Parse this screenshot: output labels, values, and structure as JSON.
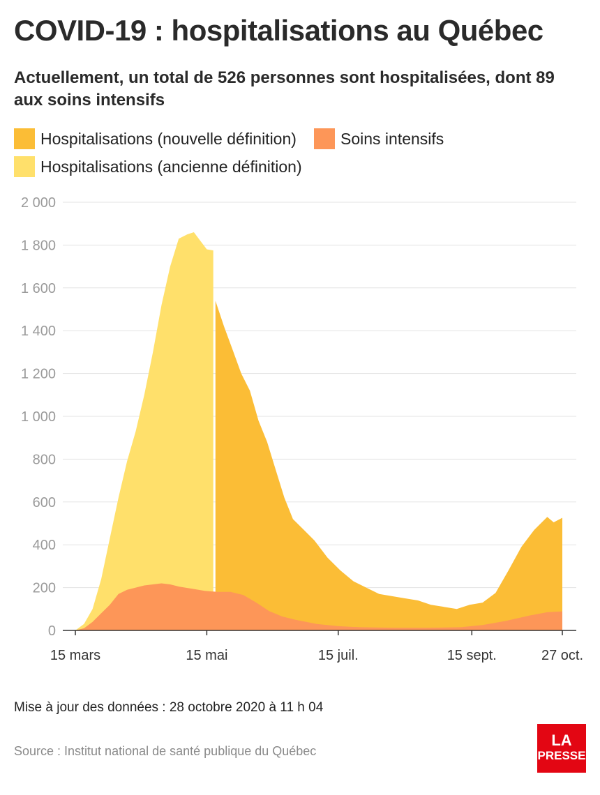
{
  "header": {
    "title": "COVID-19 : hospitalisations au Québec",
    "subtitle": "Actuellement, un total de 526 personnes sont hospitalisées, dont 89 aux soins intensifs"
  },
  "legend": {
    "items": [
      {
        "label": "Hospitalisations (nouvelle définition)",
        "color": "#fbbd36"
      },
      {
        "label": "Soins intensifs",
        "color": "#fd9658"
      },
      {
        "label": "Hospitalisations (ancienne définition)",
        "color": "#ffe06b"
      }
    ]
  },
  "chart_data": {
    "type": "area",
    "ylim": [
      0,
      2000
    ],
    "y_ticks": [
      "2 000",
      "1 800",
      "1 600",
      "1 400",
      "1 200",
      "1 000",
      "800",
      "600",
      "400",
      "200",
      "0"
    ],
    "x_ticks": [
      "15 mars",
      "15 mai",
      "15 juil.",
      "15 sept.",
      "27 oct."
    ],
    "grid": true,
    "legend_position": "top-left",
    "series": [
      {
        "name": "Hospitalisations (ancienne définition)",
        "color": "#ffe06b",
        "points": [
          [
            "2020-03-15",
            0
          ],
          [
            "2020-03-19",
            30
          ],
          [
            "2020-03-23",
            100
          ],
          [
            "2020-03-27",
            240
          ],
          [
            "2020-03-31",
            430
          ],
          [
            "2020-04-04",
            620
          ],
          [
            "2020-04-08",
            790
          ],
          [
            "2020-04-12",
            930
          ],
          [
            "2020-04-16",
            1100
          ],
          [
            "2020-04-20",
            1300
          ],
          [
            "2020-04-24",
            1520
          ],
          [
            "2020-04-28",
            1700
          ],
          [
            "2020-05-02",
            1830
          ],
          [
            "2020-05-06",
            1850
          ],
          [
            "2020-05-09",
            1860
          ],
          [
            "2020-05-12",
            1820
          ],
          [
            "2020-05-15",
            1780
          ],
          [
            "2020-05-18",
            1775
          ]
        ]
      },
      {
        "name": "Hospitalisations (nouvelle définition)",
        "color": "#fbbd36",
        "points": [
          [
            "2020-05-19",
            1540
          ],
          [
            "2020-05-23",
            1420
          ],
          [
            "2020-05-27",
            1310
          ],
          [
            "2020-05-31",
            1200
          ],
          [
            "2020-06-04",
            1120
          ],
          [
            "2020-06-08",
            980
          ],
          [
            "2020-06-12",
            880
          ],
          [
            "2020-06-16",
            750
          ],
          [
            "2020-06-20",
            620
          ],
          [
            "2020-06-24",
            520
          ],
          [
            "2020-06-28",
            480
          ],
          [
            "2020-07-04",
            420
          ],
          [
            "2020-07-10",
            340
          ],
          [
            "2020-07-16",
            280
          ],
          [
            "2020-07-22",
            230
          ],
          [
            "2020-07-28",
            200
          ],
          [
            "2020-08-03",
            170
          ],
          [
            "2020-08-09",
            160
          ],
          [
            "2020-08-15",
            150
          ],
          [
            "2020-08-21",
            140
          ],
          [
            "2020-08-27",
            120
          ],
          [
            "2020-09-02",
            110
          ],
          [
            "2020-09-08",
            100
          ],
          [
            "2020-09-14",
            120
          ],
          [
            "2020-09-20",
            130
          ],
          [
            "2020-09-26",
            175
          ],
          [
            "2020-10-02",
            280
          ],
          [
            "2020-10-08",
            390
          ],
          [
            "2020-10-14",
            470
          ],
          [
            "2020-10-20",
            530
          ],
          [
            "2020-10-23",
            505
          ],
          [
            "2020-10-27",
            526
          ]
        ]
      },
      {
        "name": "Soins intensifs",
        "color": "#fd9658",
        "points": [
          [
            "2020-03-15",
            0
          ],
          [
            "2020-03-19",
            10
          ],
          [
            "2020-03-23",
            40
          ],
          [
            "2020-03-27",
            80
          ],
          [
            "2020-03-31",
            120
          ],
          [
            "2020-04-04",
            170
          ],
          [
            "2020-04-08",
            190
          ],
          [
            "2020-04-12",
            200
          ],
          [
            "2020-04-16",
            210
          ],
          [
            "2020-04-20",
            215
          ],
          [
            "2020-04-24",
            220
          ],
          [
            "2020-04-28",
            215
          ],
          [
            "2020-05-02",
            205
          ],
          [
            "2020-05-08",
            195
          ],
          [
            "2020-05-14",
            185
          ],
          [
            "2020-05-20",
            180
          ],
          [
            "2020-05-26",
            180
          ],
          [
            "2020-06-01",
            165
          ],
          [
            "2020-06-07",
            130
          ],
          [
            "2020-06-13",
            90
          ],
          [
            "2020-06-19",
            65
          ],
          [
            "2020-06-25",
            50
          ],
          [
            "2020-07-05",
            30
          ],
          [
            "2020-07-15",
            20
          ],
          [
            "2020-07-25",
            15
          ],
          [
            "2020-08-10",
            12
          ],
          [
            "2020-08-25",
            12
          ],
          [
            "2020-09-10",
            15
          ],
          [
            "2020-09-20",
            25
          ],
          [
            "2020-10-01",
            45
          ],
          [
            "2020-10-12",
            70
          ],
          [
            "2020-10-20",
            85
          ],
          [
            "2020-10-27",
            89
          ]
        ]
      }
    ]
  },
  "footer": {
    "update": "Mise à jour des données : 28 octobre 2020 à 11 h 04",
    "source": "Source : Institut national de santé publique du Québec",
    "logo_line1": "LA",
    "logo_line2": "PRESSE"
  }
}
